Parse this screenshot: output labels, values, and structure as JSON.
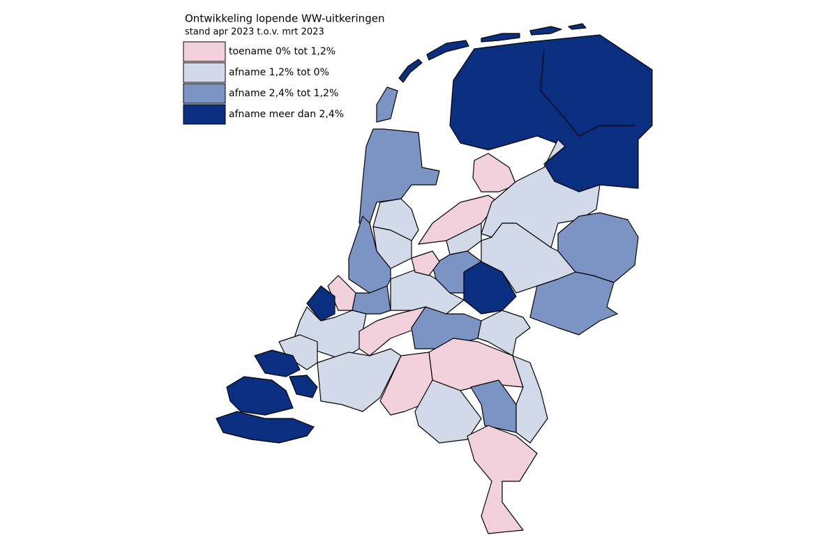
{
  "title": "Ontwikkeling lopende WW-uitkeringen",
  "subtitle": "stand apr 2023 t.o.v. mrt 2023",
  "legend": [
    {
      "label": "toename 0% tot 1,2%",
      "color": "#f2d1dd"
    },
    {
      "label": "afname 1,2% tot 0%",
      "color": "#d2daea"
    },
    {
      "label": "afname 2,4% tot 1,2%",
      "color": "#7c94c4"
    },
    {
      "label": "afname meer dan 2,4%",
      "color": "#0a2f80"
    }
  ]
}
